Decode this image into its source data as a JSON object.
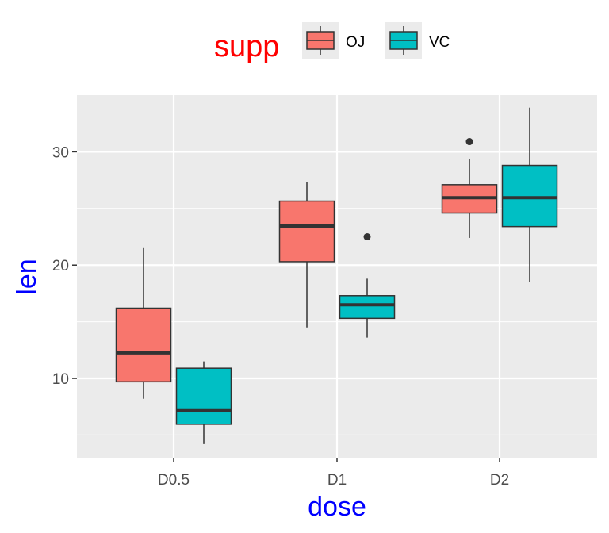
{
  "chart_data": {
    "type": "box",
    "title": "",
    "xlabel": "dose",
    "ylabel": "len",
    "categories": [
      "D0.5",
      "D1",
      "D2"
    ],
    "ylim": [
      3.0,
      35.0
    ],
    "yticks": [
      10,
      20,
      30
    ],
    "grid": true,
    "legend": {
      "title": "supp",
      "position": "top"
    },
    "colors": {
      "OJ": "#F8766D",
      "VC": "#00BFC4",
      "panel_bg": "#EBEBEB",
      "grid": "#FFFFFF",
      "axis_title": "#0000FF",
      "legend_title": "#FF0000"
    },
    "series": [
      {
        "name": "OJ",
        "boxes": [
          {
            "category": "D0.5",
            "whisker_low": 8.2,
            "q1": 9.7,
            "median": 12.25,
            "q3": 16.2,
            "whisker_high": 21.5,
            "outliers": []
          },
          {
            "category": "D1",
            "whisker_low": 14.5,
            "q1": 20.3,
            "median": 23.45,
            "q3": 25.65,
            "whisker_high": 27.3,
            "outliers": []
          },
          {
            "category": "D2",
            "whisker_low": 22.4,
            "q1": 24.6,
            "median": 25.95,
            "q3": 27.1,
            "whisker_high": 29.4,
            "outliers": [
              30.9
            ]
          }
        ]
      },
      {
        "name": "VC",
        "boxes": [
          {
            "category": "D0.5",
            "whisker_low": 4.2,
            "q1": 5.95,
            "median": 7.15,
            "q3": 10.9,
            "whisker_high": 11.5,
            "outliers": []
          },
          {
            "category": "D1",
            "whisker_low": 13.6,
            "q1": 15.3,
            "median": 16.5,
            "q3": 17.3,
            "whisker_high": 18.8,
            "outliers": [
              22.5
            ]
          },
          {
            "category": "D2",
            "whisker_low": 18.5,
            "q1": 23.4,
            "median": 25.95,
            "q3": 28.8,
            "whisker_high": 33.9,
            "outliers": []
          }
        ]
      }
    ]
  }
}
